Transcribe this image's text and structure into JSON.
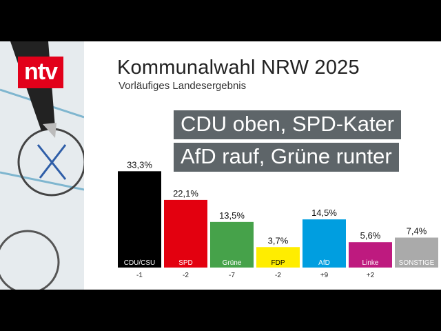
{
  "channel_logo": "ntv",
  "title": "Kommunalwahl NRW 2025",
  "subtitle": "Vorläufiges Landesergebnis",
  "headline": {
    "line1": "CDU oben, SPD-Kater",
    "line2": "AfD rauf, Grüne runter"
  },
  "chart_data": {
    "type": "bar",
    "categories": [
      "CDU/CSU",
      "SPD",
      "Grüne",
      "FDP",
      "AfD",
      "Linke",
      "SONSTIGE"
    ],
    "values": [
      33.3,
      22.1,
      13.5,
      3.7,
      14.5,
      5.6,
      7.4
    ],
    "value_labels": [
      "33,3%",
      "22,1%",
      "13,5%",
      "3,7%",
      "14,5%",
      "5,6%",
      "7,4%"
    ],
    "changes": [
      "-1",
      "-2",
      "-7",
      "-2",
      "+9",
      "+2",
      ""
    ],
    "colors": [
      "#000000",
      "#e3000f",
      "#46a24a",
      "#ffed00",
      "#009ee0",
      "#be1a7f",
      "#aaaaaa"
    ],
    "label_text_colors": [
      "#ffffff",
      "#ffffff",
      "#ffffff",
      "#000000",
      "#ffffff",
      "#ffffff",
      "#ffffff"
    ],
    "ylim": [
      0,
      35
    ]
  }
}
